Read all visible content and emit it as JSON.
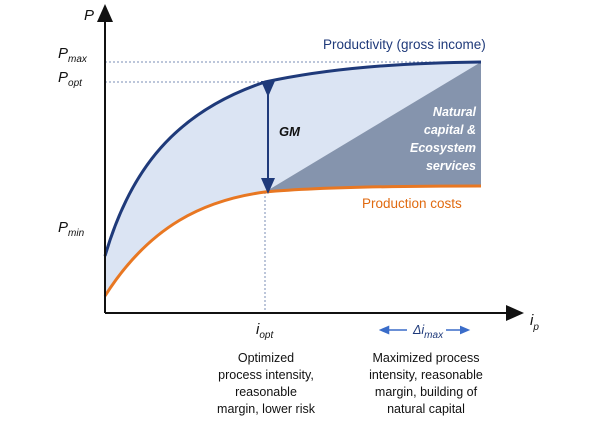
{
  "axes": {
    "y_label": "P",
    "x_label_main": "i",
    "x_label_sub": "p",
    "y_ticks": [
      {
        "main": "P",
        "sub": "max"
      },
      {
        "main": "P",
        "sub": "opt"
      },
      {
        "main": "P",
        "sub": "min"
      }
    ],
    "x_tick": {
      "main": "i",
      "sub": "opt"
    }
  },
  "curves": {
    "productivity": {
      "label": "Productivity (gross income)",
      "color": "#1f3a7a"
    },
    "costs": {
      "label": "Production costs",
      "color": "#e87722"
    }
  },
  "regions": {
    "gross_margin": {
      "label": "GM",
      "color": "#dbe4f3"
    },
    "natural_capital": {
      "lines": [
        "Natural",
        "capital &",
        "Ecosystem",
        "services"
      ],
      "color": "#8594ad"
    }
  },
  "delta_label": {
    "prefix": "Δi",
    "sub": "max"
  },
  "captions": {
    "left": [
      "Optimized",
      "process intensity,",
      "reasonable",
      "margin, lower risk"
    ],
    "right": [
      "Maximized process",
      "intensity, reasonable",
      "margin, building of",
      "natural capital"
    ]
  }
}
